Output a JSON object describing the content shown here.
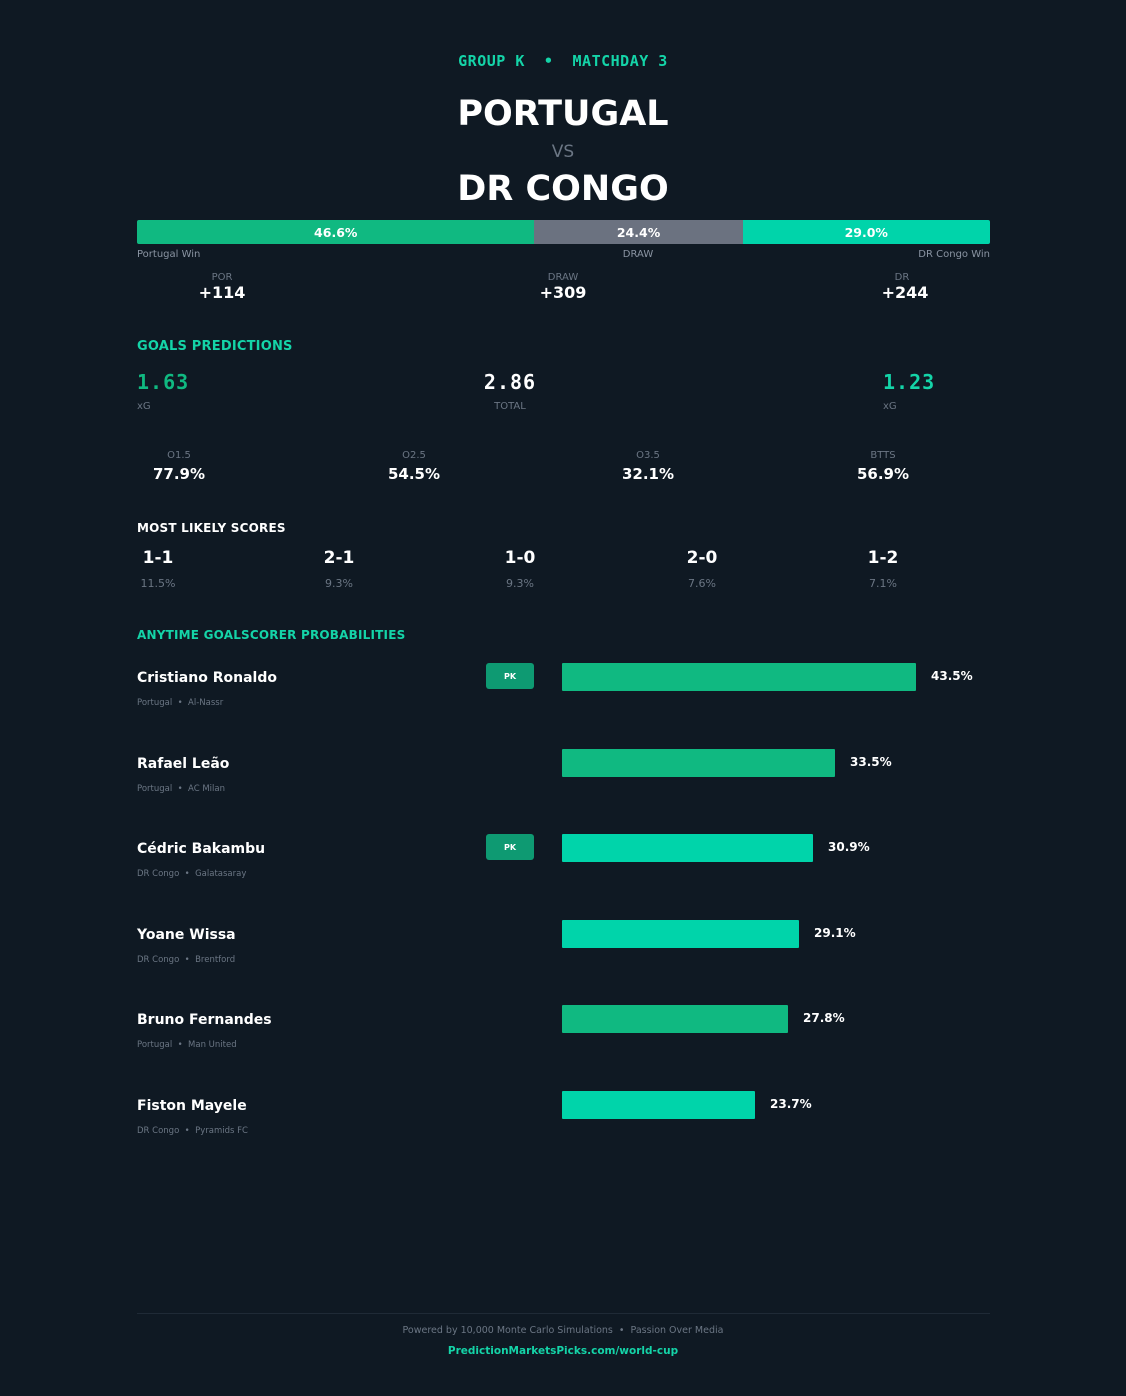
{
  "header": {
    "matchday": "GROUP K  •  MATCHDAY 3",
    "team_home": "PORTUGAL",
    "vs": "VS",
    "team_away": "DR CONGO"
  },
  "win_probabilities": {
    "home": {
      "pct": "46.6%",
      "value": 46.6,
      "label": "Portugal Win",
      "color": "#10b981"
    },
    "draw": {
      "pct": "24.4%",
      "value": 24.4,
      "label": "DRAW",
      "color": "#6b7280"
    },
    "away": {
      "pct": "29.0%",
      "value": 29.0,
      "label": "DR Congo Win",
      "color": "#00d4aa"
    }
  },
  "odds": {
    "home": {
      "label": "POR",
      "value": "+114"
    },
    "draw": {
      "label": "DRAW",
      "value": "+309"
    },
    "away": {
      "label": "DR",
      "value": "+244"
    }
  },
  "goals": {
    "title": "GOALS PREDICTIONS",
    "home_xg": "1.63",
    "home_xg_label": "xG",
    "total": "2.86",
    "total_label": "TOTAL",
    "away_xg": "1.23",
    "away_xg_label": "xG",
    "markets": [
      {
        "label": "O1.5",
        "value": "77.9%"
      },
      {
        "label": "O2.5",
        "value": "54.5%"
      },
      {
        "label": "O3.5",
        "value": "32.1%"
      },
      {
        "label": "BTTS",
        "value": "56.9%"
      }
    ]
  },
  "scores": {
    "title": "MOST LIKELY SCORES",
    "items": [
      {
        "score": "1-1",
        "pct": "11.5%"
      },
      {
        "score": "2-1",
        "pct": "9.3%"
      },
      {
        "score": "1-0",
        "pct": "9.3%"
      },
      {
        "score": "2-0",
        "pct": "7.6%"
      },
      {
        "score": "1-2",
        "pct": "7.1%"
      }
    ]
  },
  "scorers": {
    "title": "ANYTIME GOALSCORER PROBABILITIES",
    "pk_label": "PK",
    "players": [
      {
        "name": "Cristiano Ronaldo",
        "meta": "Portugal  •  Al-Nassr",
        "pct": "43.5%",
        "value": 43.5,
        "pk": true,
        "color": "#10b981"
      },
      {
        "name": "Rafael Leão",
        "meta": "Portugal  •  AC Milan",
        "pct": "33.5%",
        "value": 33.5,
        "pk": false,
        "color": "#10b981"
      },
      {
        "name": "Cédric Bakambu",
        "meta": "DR Congo  •  Galatasaray",
        "pct": "30.9%",
        "value": 30.9,
        "pk": true,
        "color": "#00d4aa"
      },
      {
        "name": "Yoane Wissa",
        "meta": "DR Congo  •  Brentford",
        "pct": "29.1%",
        "value": 29.1,
        "pk": false,
        "color": "#00d4aa"
      },
      {
        "name": "Bruno Fernandes",
        "meta": "Portugal  •  Man United",
        "pct": "27.8%",
        "value": 27.8,
        "pk": false,
        "color": "#10b981"
      },
      {
        "name": "Fiston Mayele",
        "meta": "DR Congo  •  Pyramids FC",
        "pct": "23.7%",
        "value": 23.7,
        "pk": false,
        "color": "#00d4aa"
      }
    ]
  },
  "footer": {
    "line1": "Powered by 10,000 Monte Carlo Simulations  •  Passion Over Media",
    "line2": "PredictionMarketsPicks.com/world-cup"
  }
}
